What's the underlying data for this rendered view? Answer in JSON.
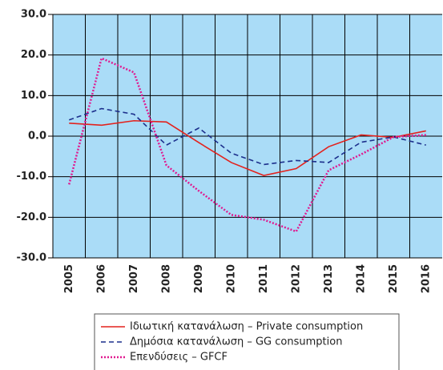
{
  "chart_data": {
    "type": "line",
    "categories": [
      "2005",
      "2006",
      "2007",
      "2008",
      "2009",
      "2010",
      "2011",
      "2012",
      "2013",
      "2014",
      "2015",
      "2016"
    ],
    "series": [
      {
        "name": "Ιδιωτική κατανάλωση – Private consumption",
        "color": "#e3221d",
        "dash": "solid",
        "values": [
          3.2,
          2.7,
          3.8,
          3.5,
          -1.6,
          -6.5,
          -9.7,
          -8.0,
          -2.6,
          0.3,
          -0.3,
          1.3
        ]
      },
      {
        "name": "Δημόσια κατανάλωση – GG consumption",
        "color": "#1c2f8c",
        "dash": "dashed",
        "values": [
          4.0,
          6.8,
          5.4,
          -2.2,
          2.0,
          -4.2,
          -7.0,
          -6.0,
          -6.5,
          -1.5,
          -0.2,
          -2.2
        ]
      },
      {
        "name": "Επενδύσεις – GFCF",
        "color": "#e0198f",
        "dash": "dotted",
        "values": [
          -11.9,
          19.2,
          15.7,
          -7.2,
          -13.5,
          -19.4,
          -20.6,
          -23.5,
          -8.4,
          -4.5,
          -0.2,
          0.3
        ]
      }
    ],
    "ylim": [
      -30,
      30
    ],
    "yticks": [
      {
        "value": 30,
        "label": "30.0"
      },
      {
        "value": 20,
        "label": "20.0"
      },
      {
        "value": 10,
        "label": "10.0"
      },
      {
        "value": 0,
        "label": "0.0"
      },
      {
        "value": -10,
        "label": "-10.0"
      },
      {
        "value": -20,
        "label": "-20.0"
      },
      {
        "value": -30,
        "label": "-30.0"
      }
    ],
    "grid": true,
    "plot_background": "#aadcf7",
    "legend": "bottom"
  }
}
